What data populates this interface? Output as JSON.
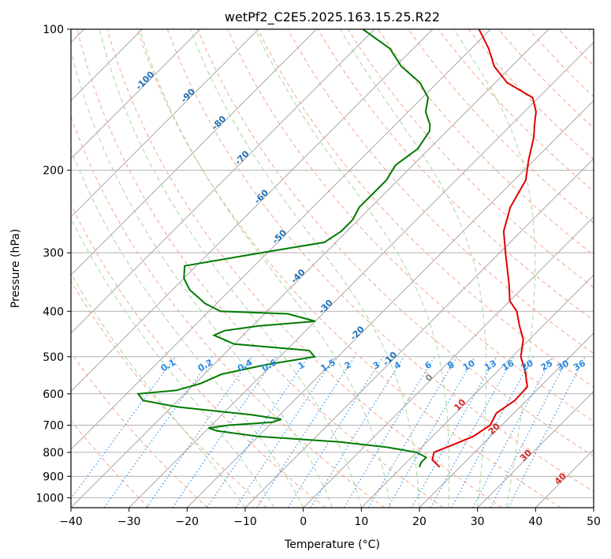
{
  "chart_data": {
    "type": "skew-t",
    "title": "wetPf2_C2E5.2025.163.15.25.R22",
    "xlabel": "Temperature (°C)",
    "ylabel": "Pressure (hPa)",
    "xlim": [
      -40,
      50
    ],
    "ylim": [
      1050,
      100
    ],
    "log_y": true,
    "grid": true,
    "x_ticks": [
      -40,
      -30,
      -20,
      -10,
      0,
      10,
      20,
      30,
      40,
      50
    ],
    "x_tick_labels": [
      "−40",
      "−30",
      "−20",
      "−10",
      "0",
      "10",
      "20",
      "30",
      "40",
      "50"
    ],
    "y_ticks": [
      100,
      200,
      300,
      400,
      500,
      600,
      700,
      800,
      900,
      1000
    ],
    "y_tick_labels": [
      "100",
      "200",
      "300",
      "400",
      "500",
      "600",
      "700",
      "800",
      "900",
      "1000"
    ],
    "isotherm_labels": [
      "-100",
      "-90",
      "-80",
      "-70",
      "-60",
      "-50",
      "-40",
      "-30",
      "-20",
      "-10",
      "0",
      "10",
      "20",
      "30",
      "40"
    ],
    "mixing_ratio_labels": [
      "0.1",
      "0.2",
      "0.4",
      "0.6",
      "1",
      "1.5",
      "2",
      "3",
      "4",
      "6",
      "8",
      "10",
      "13",
      "16",
      "20",
      "25",
      "30",
      "36"
    ],
    "series": [
      {
        "role": "temperature",
        "color": "#e00000",
        "points": [
          [
            860,
            16.5
          ],
          [
            830,
            14
          ],
          [
            800,
            13
          ],
          [
            770,
            15
          ],
          [
            740,
            17
          ],
          [
            700,
            18
          ],
          [
            660,
            17
          ],
          [
            620,
            18
          ],
          [
            580,
            17.8
          ],
          [
            540,
            15
          ],
          [
            500,
            11.5
          ],
          [
            460,
            9
          ],
          [
            430,
            6
          ],
          [
            400,
            3
          ],
          [
            380,
            0
          ],
          [
            350,
            -3
          ],
          [
            300,
            -9
          ],
          [
            270,
            -13
          ],
          [
            240,
            -16
          ],
          [
            210,
            -18
          ],
          [
            190,
            -21
          ],
          [
            170,
            -24
          ],
          [
            160,
            -26
          ],
          [
            150,
            -28
          ],
          [
            140,
            -31
          ],
          [
            130,
            -38
          ],
          [
            120,
            -43
          ],
          [
            110,
            -47
          ],
          [
            100,
            -52
          ]
        ]
      },
      {
        "role": "dewpoint",
        "color": "#007a00",
        "points": [
          [
            860,
            13
          ],
          [
            840,
            12.5
          ],
          [
            820,
            12.5
          ],
          [
            800,
            10
          ],
          [
            780,
            4
          ],
          [
            760,
            -5
          ],
          [
            740,
            -20
          ],
          [
            720,
            -28
          ],
          [
            710,
            -30
          ],
          [
            700,
            -27
          ],
          [
            690,
            -20
          ],
          [
            680,
            -19
          ],
          [
            665,
            -25
          ],
          [
            640,
            -39
          ],
          [
            620,
            -46
          ],
          [
            600,
            -48
          ],
          [
            590,
            -42
          ],
          [
            570,
            -39
          ],
          [
            545,
            -37
          ],
          [
            520,
            -31
          ],
          [
            500,
            -24
          ],
          [
            485,
            -26
          ],
          [
            470,
            -40
          ],
          [
            450,
            -45
          ],
          [
            440,
            -44
          ],
          [
            430,
            -39
          ],
          [
            420,
            -30
          ],
          [
            405,
            -36
          ],
          [
            400,
            -48
          ],
          [
            385,
            -52
          ],
          [
            360,
            -57
          ],
          [
            340,
            -60
          ],
          [
            320,
            -62
          ],
          [
            300,
            -51
          ],
          [
            285,
            -42
          ],
          [
            270,
            -41
          ],
          [
            255,
            -41
          ],
          [
            240,
            -42
          ],
          [
            225,
            -42
          ],
          [
            210,
            -42
          ],
          [
            195,
            -43
          ],
          [
            180,
            -42
          ],
          [
            165,
            -43
          ],
          [
            160,
            -44
          ],
          [
            150,
            -47
          ],
          [
            140,
            -49
          ],
          [
            130,
            -53
          ],
          [
            120,
            -59
          ],
          [
            110,
            -64
          ],
          [
            100,
            -72
          ]
        ]
      }
    ]
  }
}
